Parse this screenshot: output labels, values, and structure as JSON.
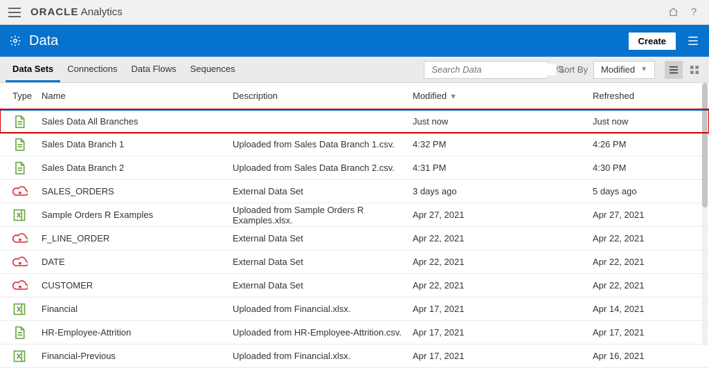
{
  "brand": {
    "bold": "ORACLE",
    "light": "Analytics"
  },
  "bluebar": {
    "title": "Data",
    "create": "Create"
  },
  "tabs": [
    {
      "label": "Data Sets",
      "active": true
    },
    {
      "label": "Connections",
      "active": false
    },
    {
      "label": "Data Flows",
      "active": false
    },
    {
      "label": "Sequences",
      "active": false
    }
  ],
  "search": {
    "placeholder": "Search Data"
  },
  "sort": {
    "label": "Sort By",
    "value": "Modified"
  },
  "columns": {
    "type": "Type",
    "name": "Name",
    "desc": "Description",
    "modified": "Modified",
    "refreshed": "Refreshed"
  },
  "rows": [
    {
      "icon": "doc-green",
      "name": "Sales Data All Branches",
      "desc": "",
      "modified": "Just now",
      "refreshed": "Just now",
      "highlight": true
    },
    {
      "icon": "doc-green",
      "name": "Sales Data Branch 1",
      "desc": "Uploaded from Sales Data Branch 1.csv.",
      "modified": "4:32 PM",
      "refreshed": "4:26 PM"
    },
    {
      "icon": "doc-green",
      "name": "Sales Data Branch 2",
      "desc": "Uploaded from Sales Data Branch 2.csv.",
      "modified": "4:31 PM",
      "refreshed": "4:30 PM"
    },
    {
      "icon": "cloud-red",
      "name": "SALES_ORDERS",
      "desc": "External Data Set",
      "modified": "3 days ago",
      "refreshed": "5 days ago"
    },
    {
      "icon": "xls-green",
      "name": "Sample Orders R Examples",
      "desc": "Uploaded from Sample Orders R Examples.xlsx.",
      "modified": "Apr 27, 2021",
      "refreshed": "Apr 27, 2021"
    },
    {
      "icon": "cloud-red",
      "name": "F_LINE_ORDER",
      "desc": "External Data Set",
      "modified": "Apr 22, 2021",
      "refreshed": "Apr 22, 2021"
    },
    {
      "icon": "cloud-red",
      "name": "DATE",
      "desc": "External Data Set",
      "modified": "Apr 22, 2021",
      "refreshed": "Apr 22, 2021"
    },
    {
      "icon": "cloud-red",
      "name": "CUSTOMER",
      "desc": "External Data Set",
      "modified": "Apr 22, 2021",
      "refreshed": "Apr 22, 2021"
    },
    {
      "icon": "xls-green",
      "name": "Financial",
      "desc": "Uploaded from Financial.xlsx.",
      "modified": "Apr 17, 2021",
      "refreshed": "Apr 14, 2021"
    },
    {
      "icon": "doc-green",
      "name": "HR-Employee-Attrition",
      "desc": "Uploaded from HR-Employee-Attrition.csv.",
      "modified": "Apr 17, 2021",
      "refreshed": "Apr 17, 2021"
    },
    {
      "icon": "xls-green",
      "name": "Financial-Previous",
      "desc": "Uploaded from Financial.xlsx.",
      "modified": "Apr 17, 2021",
      "refreshed": "Apr 16, 2021"
    }
  ],
  "colors": {
    "blue": "#0572ce",
    "green": "#6aa840",
    "red": "#d9363e",
    "grey": "#888888"
  }
}
